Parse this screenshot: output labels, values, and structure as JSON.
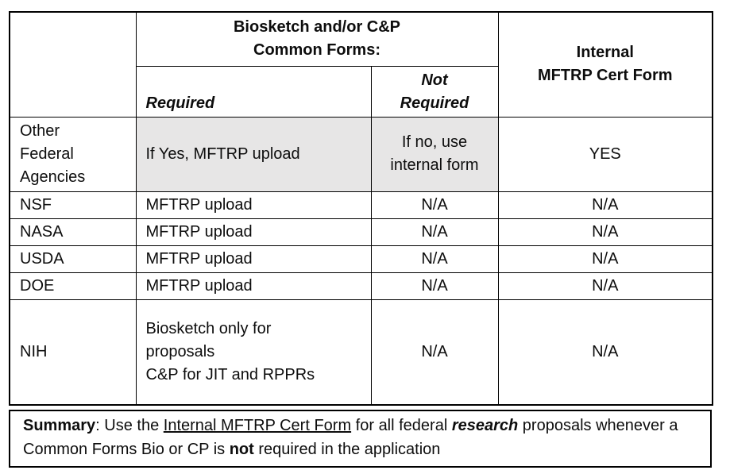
{
  "colors": {
    "shaded_cell": "#e7e6e6",
    "border": "#000000",
    "text": "#0d0d0d",
    "background": "#ffffff"
  },
  "table": {
    "header": {
      "group_title": "Biosketch and/or C&P\nCommon Forms:",
      "col_required": "Required",
      "col_not_required": "Not\nRequired",
      "col_internal": "Internal\nMFTRP Cert Form"
    },
    "rows": [
      {
        "agency": "Other\nFederal\nAgencies",
        "required": "If Yes, MFTRP upload",
        "not_required": "If no, use\ninternal form",
        "internal": "YES",
        "shaded": true
      },
      {
        "agency": "NSF",
        "required": "MFTRP upload",
        "not_required": "N/A",
        "internal": "N/A",
        "shaded": false
      },
      {
        "agency": "NASA",
        "required": "MFTRP upload",
        "not_required": "N/A",
        "internal": "N/A",
        "shaded": false
      },
      {
        "agency": "USDA",
        "required": "MFTRP upload",
        "not_required": "N/A",
        "internal": "N/A",
        "shaded": false
      },
      {
        "agency": "DOE",
        "required": "MFTRP upload",
        "not_required": "N/A",
        "internal": "N/A",
        "shaded": false
      },
      {
        "agency": "NIH",
        "required": "Biosketch only for\nproposals\nC&P for JIT and RPPRs",
        "not_required": "N/A",
        "internal": "N/A",
        "shaded": false
      }
    ]
  },
  "summary": {
    "segments": [
      {
        "text": "Summary",
        "style": "bold"
      },
      {
        "text": ": Use the ",
        "style": ""
      },
      {
        "text": "Internal MFTRP Cert Form",
        "style": "underline"
      },
      {
        "text": " for all federal ",
        "style": ""
      },
      {
        "text": "research",
        "style": "bold-italic"
      },
      {
        "text": " proposals whenever a Common Forms Bio or CP is ",
        "style": ""
      },
      {
        "text": "not",
        "style": "bold"
      },
      {
        "text": " required in the application",
        "style": ""
      }
    ]
  }
}
